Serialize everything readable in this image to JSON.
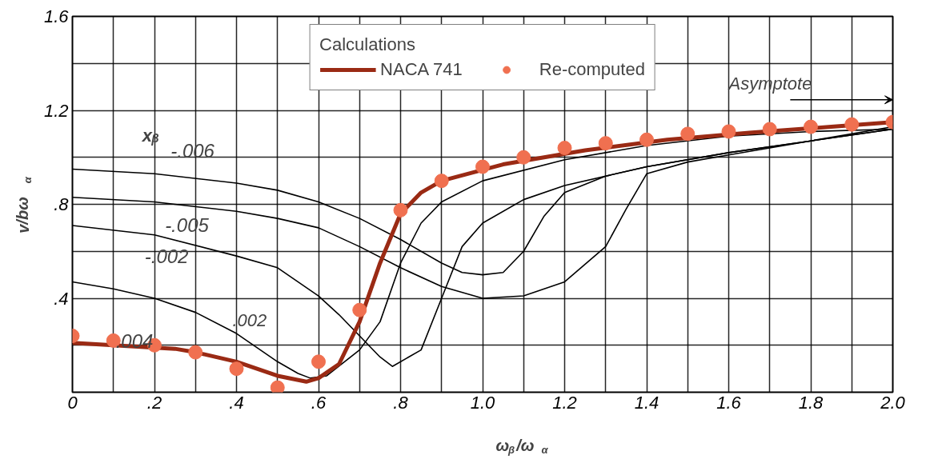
{
  "chart_data": {
    "type": "line",
    "xlabel": "ω$_{β}$/ω$_{α}$",
    "ylabel": "v/bω$_{α}$",
    "legend_title": "Calculations",
    "xlim": [
      0,
      2.0
    ],
    "ylim": [
      0,
      1.6
    ],
    "xticks": [
      0,
      {
        "value": 0.1,
        "label": null
      },
      {
        "value": 0.2,
        "label": ".2"
      },
      {
        "value": 0.3,
        "label": null
      },
      {
        "value": 0.4,
        "label": ".4"
      },
      {
        "value": 0.5,
        "label": null
      },
      {
        "value": 0.6,
        "label": ".6"
      },
      {
        "value": 0.7,
        "label": null
      },
      {
        "value": 0.8,
        "label": ".8"
      },
      {
        "value": 0.9,
        "label": null
      },
      {
        "value": 1.0,
        "label": "1.0"
      },
      {
        "value": 1.1,
        "label": null
      },
      {
        "value": 1.2,
        "label": "1.2"
      },
      {
        "value": 1.3,
        "label": null
      },
      {
        "value": 1.4,
        "label": "1.4"
      },
      {
        "value": 1.5,
        "label": null
      },
      {
        "value": 1.6,
        "label": "1.6"
      },
      {
        "value": 1.7,
        "label": null
      },
      {
        "value": 1.8,
        "label": "1.8"
      },
      {
        "value": 1.9,
        "label": null
      },
      {
        "value": 2.0,
        "label": "2.0"
      }
    ],
    "yticks": [
      {
        "value": 0,
        "label": null
      },
      {
        "value": 0.2,
        "label": null
      },
      {
        "value": 0.4,
        "label": ".4"
      },
      {
        "value": 0.6,
        "label": null
      },
      {
        "value": 0.8,
        "label": ".8"
      },
      {
        "value": 1.0,
        "label": null
      },
      {
        "value": 1.2,
        "label": "1.2"
      },
      {
        "value": 1.4,
        "label": null
      },
      {
        "value": 1.6,
        "label": "1.6"
      }
    ],
    "grid": true,
    "legend": "top",
    "line_style": "solid",
    "series": [
      {
        "color": "#000000",
        "x": [
          0,
          0.2,
          0.4,
          0.5,
          0.6,
          0.7,
          0.8,
          0.9,
          0.95,
          1.0,
          1.05,
          1.1,
          1.15,
          1.2,
          1.3,
          1.4,
          1.6,
          1.8,
          2.0
        ],
        "values": [
          0.95,
          0.93,
          0.89,
          0.86,
          0.81,
          0.74,
          0.65,
          0.55,
          0.51,
          0.5,
          0.51,
          0.6,
          0.75,
          0.85,
          0.92,
          0.96,
          1.02,
          1.07,
          1.12
        ]
      },
      {
        "color": "#000000",
        "x": [
          0,
          0.2,
          0.4,
          0.5,
          0.6,
          0.7,
          0.8,
          0.9,
          1.0,
          1.1,
          1.2,
          1.3,
          1.35,
          1.4,
          1.5,
          1.6,
          1.8,
          2.0
        ],
        "values": [
          0.83,
          0.81,
          0.77,
          0.74,
          0.7,
          0.62,
          0.53,
          0.45,
          0.4,
          0.41,
          0.47,
          0.62,
          0.78,
          0.93,
          0.98,
          1.01,
          1.07,
          1.12
        ]
      },
      {
        "color": "#000000",
        "x": [
          0,
          0.2,
          0.4,
          0.5,
          0.6,
          0.65,
          0.7,
          0.75,
          0.78,
          0.85,
          0.9,
          0.95,
          1.0,
          1.1,
          1.2,
          1.4,
          1.6,
          1.8,
          2.0
        ],
        "values": [
          0.71,
          0.67,
          0.58,
          0.53,
          0.41,
          0.33,
          0.24,
          0.15,
          0.11,
          0.18,
          0.4,
          0.62,
          0.72,
          0.82,
          0.88,
          0.96,
          1.02,
          1.07,
          1.13
        ]
      },
      {
        "color": "#000000",
        "x": [
          0,
          0.1,
          0.2,
          0.3,
          0.4,
          0.5,
          0.55,
          0.58,
          0.62,
          0.7,
          0.75,
          0.8,
          0.85,
          0.9,
          1.0,
          1.2,
          1.4,
          1.6,
          1.8,
          2.0
        ],
        "values": [
          0.47,
          0.44,
          0.4,
          0.34,
          0.25,
          0.13,
          0.08,
          0.06,
          0.07,
          0.18,
          0.3,
          0.55,
          0.72,
          0.81,
          0.9,
          0.99,
          1.05,
          1.09,
          1.11,
          1.12
        ]
      },
      {
        "name": "NACA 741",
        "color": "#9a2a14",
        "x": [
          0,
          0.25,
          0.3,
          0.4,
          0.5,
          0.57,
          0.6,
          0.65,
          0.7,
          0.75,
          0.8,
          0.85,
          0.9,
          1.05,
          1.25,
          1.45,
          1.65,
          1.85,
          2.0
        ],
        "values": [
          0.21,
          0.185,
          0.17,
          0.13,
          0.07,
          0.045,
          0.06,
          0.12,
          0.3,
          0.55,
          0.76,
          0.85,
          0.9,
          0.97,
          1.03,
          1.075,
          1.105,
          1.13,
          1.15
        ]
      },
      {
        "name": "Re-computed",
        "type": "scatter",
        "marker": "circle",
        "color": "#f07050",
        "x": [
          0,
          0.1,
          0.2,
          0.3,
          0.4,
          0.5,
          0.6,
          0.7,
          0.8,
          0.9,
          1.0,
          1.1,
          1.2,
          1.3,
          1.4,
          1.5,
          1.6,
          1.7,
          1.8,
          1.9,
          2.0
        ],
        "values": [
          0.24,
          0.22,
          0.2,
          0.17,
          0.1,
          0.02,
          0.13,
          0.35,
          0.775,
          0.9,
          0.96,
          1.0,
          1.04,
          1.06,
          1.075,
          1.1,
          1.11,
          1.12,
          1.13,
          1.14,
          1.15
        ]
      }
    ],
    "annotations": [
      "xᵦ",
      {
        "text": "-.006",
        "x": 0.22,
        "y": 0.93
      },
      {
        "text": "-.005",
        "x": 0.45,
        "y": 0.77
      },
      {
        "text": "-.002",
        "x": 0.42,
        "y": 0.59
      },
      ".002",
      {
        "text": ".004",
        "x": 0.33,
        "y": 0.17
      },
      "Asymptote"
    ]
  }
}
